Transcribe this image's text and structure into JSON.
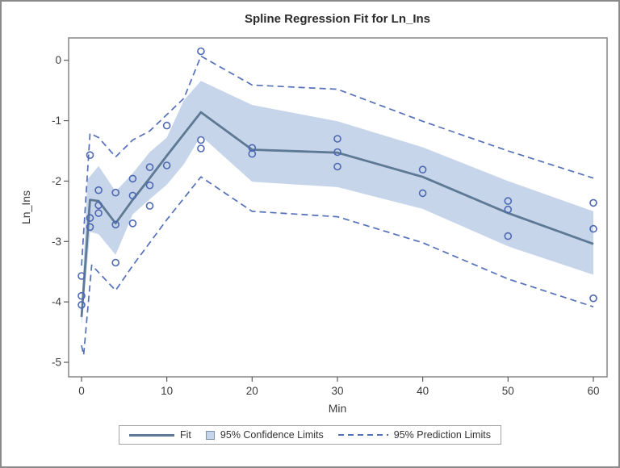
{
  "figure": {
    "background": "#ffffff",
    "border_color": "#8a8a8a"
  },
  "chart_data": {
    "type": "line",
    "title": "Spline Regression Fit for Ln_Ins",
    "xlabel": "Min",
    "ylabel": "Ln_Ins",
    "xlim": [
      -1.51,
      61.61
    ],
    "ylim": [
      -5.24,
      0.37
    ],
    "xticks": [
      0,
      10,
      20,
      30,
      40,
      50,
      60
    ],
    "yticks": [
      0,
      -1,
      -2,
      -3,
      -4,
      -5
    ],
    "grid": false,
    "legend_position": "bottom",
    "colors": {
      "fit": "#5d7994",
      "confidence_band": "#c6d5e9",
      "prediction_limits": "#5470b8",
      "markers": "#4d68b2",
      "axis_frame": "#868686",
      "tick_text": "#3c3c3c"
    },
    "series": [
      {
        "name": "Fit",
        "type": "line",
        "color": "#5d7994",
        "points": [
          [
            0,
            -4.25
          ],
          [
            1,
            -2.31
          ],
          [
            2,
            -2.33
          ],
          [
            4,
            -2.7
          ],
          [
            6,
            -2.31
          ],
          [
            8,
            -1.95
          ],
          [
            10,
            -1.58
          ],
          [
            12,
            -1.22
          ],
          [
            14,
            -0.86
          ],
          [
            20,
            -1.48
          ],
          [
            30,
            -1.53
          ],
          [
            40,
            -1.93
          ],
          [
            50,
            -2.53
          ],
          [
            60,
            -3.04
          ]
        ]
      },
      {
        "name": "95% Confidence Limits",
        "type": "band",
        "color": "#c6d5e9",
        "upper": [
          [
            0,
            -4.1
          ],
          [
            0.7,
            -1.97
          ],
          [
            2,
            -1.75
          ],
          [
            4,
            -2.17
          ],
          [
            6,
            -1.87
          ],
          [
            8,
            -1.52
          ],
          [
            10,
            -1.28
          ],
          [
            12,
            -0.66
          ],
          [
            14,
            -0.34
          ],
          [
            20,
            -0.74
          ],
          [
            30,
            -1.01
          ],
          [
            40,
            -1.44
          ],
          [
            50,
            -2.0
          ],
          [
            60,
            -2.5
          ]
        ],
        "lower": [
          [
            0,
            -4.4
          ],
          [
            1,
            -2.84
          ],
          [
            2,
            -2.88
          ],
          [
            4,
            -3.22
          ],
          [
            6,
            -2.55
          ],
          [
            8,
            -2.3
          ],
          [
            10,
            -2.06
          ],
          [
            12,
            -1.72
          ],
          [
            14,
            -1.25
          ],
          [
            20,
            -2.01
          ],
          [
            30,
            -2.1
          ],
          [
            40,
            -2.46
          ],
          [
            50,
            -3.08
          ],
          [
            60,
            -3.55
          ]
        ]
      },
      {
        "name": "95% Prediction Limits",
        "type": "dashed",
        "color": "#5470b8",
        "upper": [
          [
            0,
            -3.4
          ],
          [
            1,
            -1.21
          ],
          [
            2,
            -1.28
          ],
          [
            4,
            -1.6
          ],
          [
            6,
            -1.32
          ],
          [
            8,
            -1.17
          ],
          [
            10,
            -0.9
          ],
          [
            12,
            -0.63
          ],
          [
            14,
            0.07
          ],
          [
            20,
            -0.41
          ],
          [
            30,
            -0.48
          ],
          [
            40,
            -1.01
          ],
          [
            50,
            -1.5
          ],
          [
            60,
            -1.95
          ]
        ],
        "lower": [
          [
            0,
            -4.72
          ],
          [
            0.25,
            -4.88
          ],
          [
            1.2,
            -3.39
          ],
          [
            4,
            -3.81
          ],
          [
            6,
            -3.4
          ],
          [
            8,
            -3.02
          ],
          [
            10,
            -2.64
          ],
          [
            14,
            -1.93
          ],
          [
            20,
            -2.5
          ],
          [
            30,
            -2.59
          ],
          [
            40,
            -3.02
          ],
          [
            50,
            -3.62
          ],
          [
            60,
            -4.08
          ]
        ]
      },
      {
        "name": "observations",
        "type": "scatter",
        "color": "#4d68b2",
        "points": [
          [
            0,
            -3.57
          ],
          [
            0,
            -3.9
          ],
          [
            0,
            -4.05
          ],
          [
            1,
            -1.57
          ],
          [
            1,
            -2.61
          ],
          [
            1,
            -2.76
          ],
          [
            2,
            -2.15
          ],
          [
            2,
            -2.4
          ],
          [
            2,
            -2.53
          ],
          [
            4,
            -2.19
          ],
          [
            4,
            -2.72
          ],
          [
            4,
            -3.35
          ],
          [
            6,
            -1.96
          ],
          [
            6,
            -2.24
          ],
          [
            6,
            -2.7
          ],
          [
            8,
            -1.77
          ],
          [
            8,
            -2.07
          ],
          [
            8,
            -2.41
          ],
          [
            10,
            -1.08
          ],
          [
            10,
            -1.74
          ],
          [
            14,
            0.15
          ],
          [
            14,
            -1.32
          ],
          [
            14,
            -1.46
          ],
          [
            20,
            -1.45
          ],
          [
            20,
            -1.55
          ],
          [
            30,
            -1.3
          ],
          [
            30,
            -1.52
          ],
          [
            30,
            -1.76
          ],
          [
            40,
            -1.81
          ],
          [
            40,
            -2.2
          ],
          [
            50,
            -2.33
          ],
          [
            50,
            -2.47
          ],
          [
            50,
            -2.91
          ],
          [
            60,
            -2.36
          ],
          [
            60,
            -2.79
          ],
          [
            60,
            -3.94
          ]
        ]
      }
    ],
    "legend": [
      {
        "label": "Fit",
        "swatch": "line"
      },
      {
        "label": "95% Confidence Limits",
        "swatch": "fill"
      },
      {
        "label": "95% Prediction Limits",
        "swatch": "dashed"
      }
    ]
  }
}
